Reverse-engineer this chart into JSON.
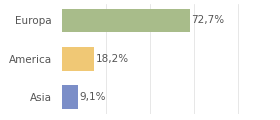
{
  "categories": [
    "Europa",
    "America",
    "Asia"
  ],
  "values": [
    72.7,
    18.2,
    9.1
  ],
  "labels": [
    "72,7%",
    "18,2%",
    "9,1%"
  ],
  "colors": [
    "#a8bc8a",
    "#f0c875",
    "#7b8ec8"
  ],
  "xlim": [
    0,
    105
  ],
  "background_color": "#ffffff",
  "label_fontsize": 7.5,
  "tick_fontsize": 7.5,
  "bar_height": 0.62,
  "grid_values": [
    25,
    50,
    75,
    100
  ],
  "grid_color": "#dddddd",
  "text_color": "#555555"
}
